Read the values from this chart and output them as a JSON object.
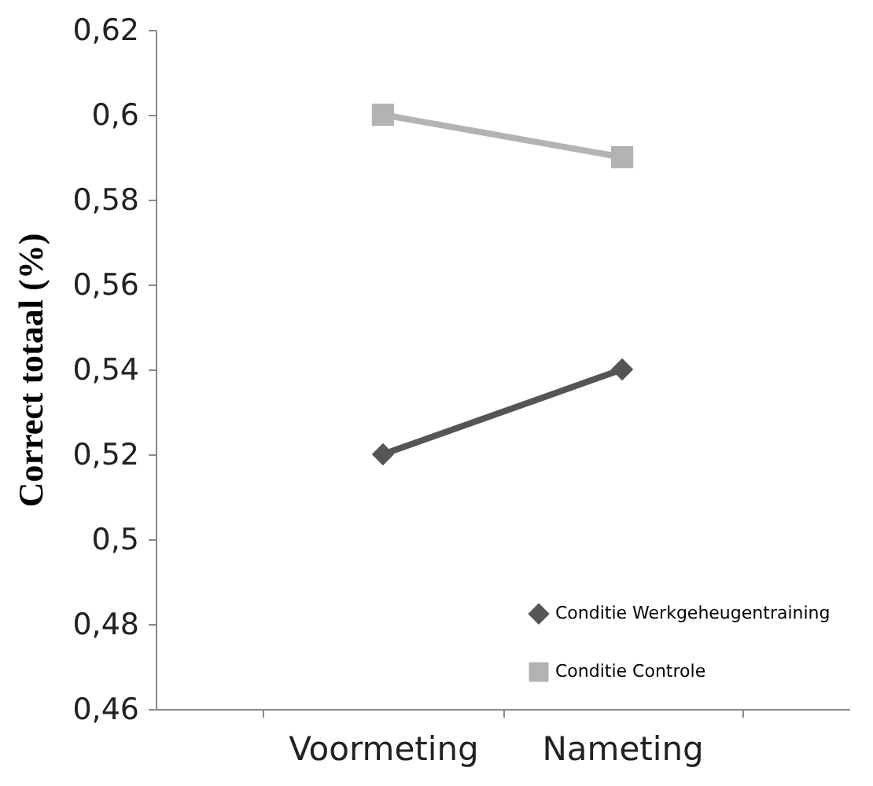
{
  "chart_data": {
    "type": "line",
    "ylabel": "Correct totaal (%)",
    "categories": [
      "Voormeting",
      "Nameting"
    ],
    "series": [
      {
        "name": "Conditie Werkgeheugentraining",
        "color": "#555555",
        "marker": "diamond",
        "values": [
          0.52,
          0.54
        ]
      },
      {
        "name": "Conditie Controle",
        "color": "#b3b3b3",
        "marker": "square",
        "values": [
          0.6,
          0.59
        ]
      }
    ],
    "ylim": [
      0.46,
      0.62
    ],
    "yticks": [
      {
        "value": 0.46,
        "label": "0,46"
      },
      {
        "value": 0.48,
        "label": "0,48"
      },
      {
        "value": 0.5,
        "label": "0,5"
      },
      {
        "value": 0.52,
        "label": "0,52"
      },
      {
        "value": 0.54,
        "label": "0,54"
      },
      {
        "value": 0.56,
        "label": "0,56"
      },
      {
        "value": 0.58,
        "label": "0,58"
      },
      {
        "value": 0.6,
        "label": "0,6"
      },
      {
        "value": 0.62,
        "label": "0,62"
      }
    ],
    "grid": false,
    "legend": "bottom right",
    "line_style": "solid"
  }
}
